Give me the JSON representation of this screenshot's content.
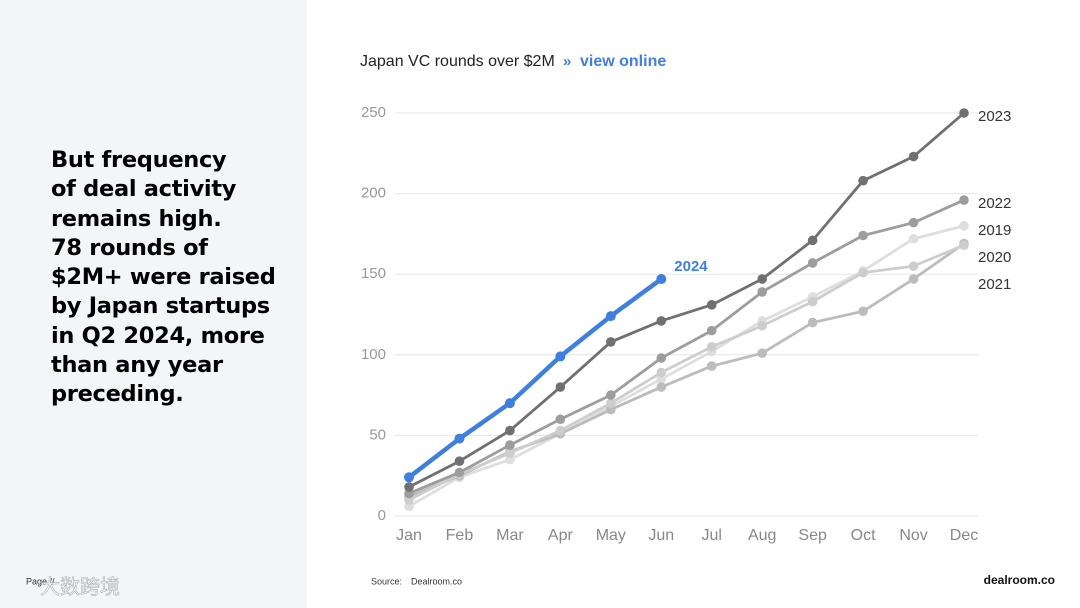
{
  "headline": [
    "But frequency",
    "of deal activity",
    "remains high.",
    "78 rounds of",
    "$2M+ were raised",
    "by Japan startups",
    "in Q2 2024, more",
    "than any year",
    "preceding."
  ],
  "footer": {
    "page": "Page //",
    "source_label": "Source:",
    "source": "Dealroom.co",
    "logo": "dealroom.co",
    "watermark": "大数跨境"
  },
  "chart_data": {
    "type": "line",
    "title": "Japan VC rounds over $2M",
    "link_separator": "»",
    "link": "view online",
    "categories": [
      "Jan",
      "Feb",
      "Mar",
      "Apr",
      "May",
      "Jun",
      "Jul",
      "Aug",
      "Sep",
      "Oct",
      "Nov",
      "Dec"
    ],
    "ylim": [
      0,
      250
    ],
    "yticks": [
      0,
      50,
      100,
      150,
      200,
      250
    ],
    "grid": true,
    "series": [
      {
        "name": "2019",
        "color": "#dedede",
        "values": [
          6,
          24,
          35,
          51,
          68,
          85,
          102,
          121,
          136,
          152,
          172,
          180
        ]
      },
      {
        "name": "2020",
        "color": "#bcbcbc",
        "values": [
          12,
          25,
          40,
          51,
          66,
          80,
          93,
          101,
          120,
          127,
          147,
          169
        ]
      },
      {
        "name": "2021",
        "color": "#cdcdcd",
        "values": [
          10,
          26,
          39,
          53,
          70,
          89,
          105,
          118,
          133,
          151,
          155,
          168
        ]
      },
      {
        "name": "2022",
        "color": "#9d9d9d",
        "values": [
          14,
          27,
          44,
          60,
          75,
          98,
          115,
          139,
          157,
          174,
          182,
          196
        ]
      },
      {
        "name": "2023",
        "color": "#707070",
        "values": [
          18,
          34,
          53,
          80,
          108,
          121,
          131,
          147,
          171,
          208,
          223,
          250
        ]
      },
      {
        "name": "2024",
        "color": "#3f7fdf",
        "values": [
          24,
          48,
          70,
          99,
          124,
          147,
          null,
          null,
          null,
          null,
          null,
          null
        ]
      }
    ]
  }
}
